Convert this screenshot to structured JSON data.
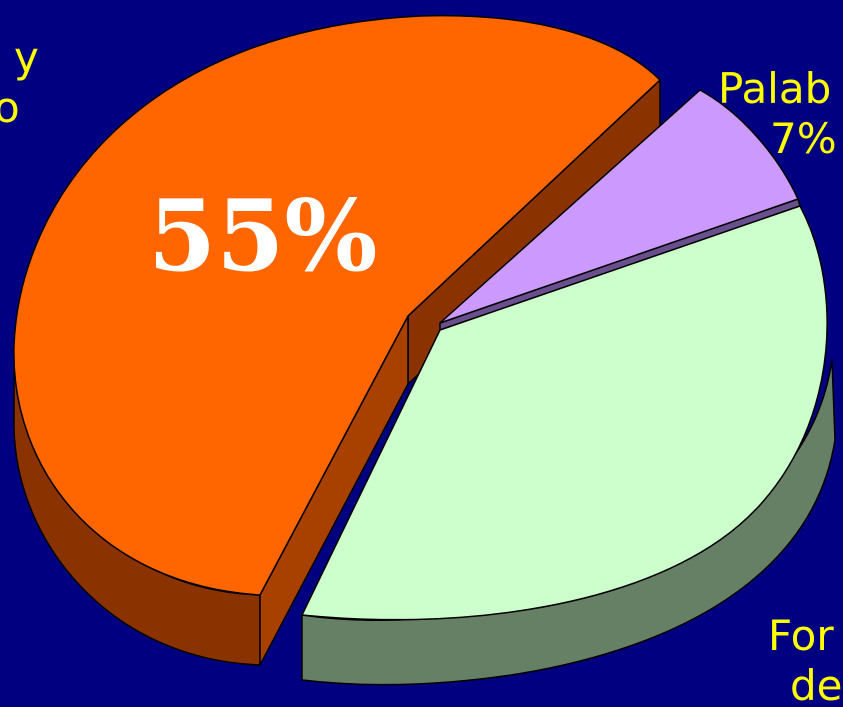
{
  "chart_data": {
    "type": "pie",
    "three_d": true,
    "exploded": true,
    "slices": [
      {
        "label_lines": [
          "",
          "y",
          "o"
        ],
        "value": 55,
        "value_label": "55%",
        "color": "#FF6600",
        "side_color": "#8A3300",
        "label_color": "#FFFFFF"
      },
      {
        "label_lines": [
          "Palab",
          "7%"
        ],
        "value": 7,
        "value_label": "",
        "color": "#CC99FF",
        "side_color": "#6A4F8F",
        "label_color": "#FFFF00"
      },
      {
        "label_lines": [
          "For",
          "de"
        ],
        "value": 38,
        "value_label": "",
        "color": "#CCFFCC",
        "side_color": "#668066",
        "label_color": "#FFFF00"
      }
    ],
    "background": "#010080"
  }
}
